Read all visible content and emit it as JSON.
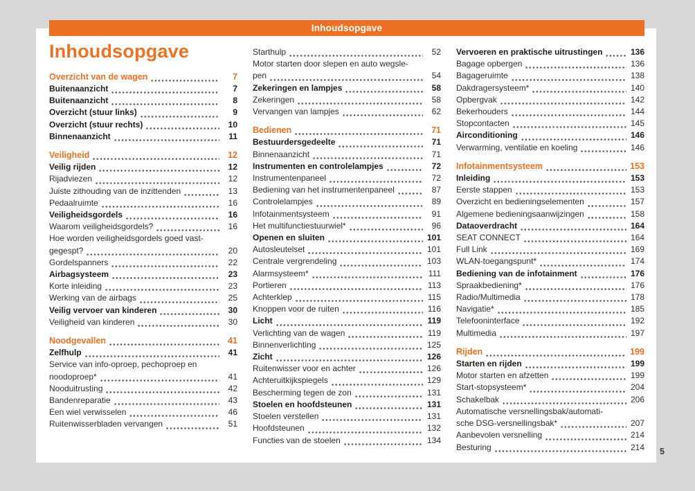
{
  "colors": {
    "accent_orange": "#ee7023",
    "background_gray": "#d8d8d8",
    "page_white": "#ffffff",
    "text": "#2e2d2c"
  },
  "header_bar": {
    "title": "Inhoudsopgave"
  },
  "margin": {
    "page_number": "5"
  },
  "toc": {
    "title": "Inhoudsopgave",
    "columns": [
      {
        "items": [
          {
            "style": "chapter",
            "text": "Overzicht van de wagen",
            "page": "7"
          },
          {
            "style": "section",
            "text": "Buitenaanzicht",
            "page": "7"
          },
          {
            "style": "section",
            "text": "Buitenaanzicht",
            "page": "8"
          },
          {
            "style": "section",
            "text": "Overzicht (stuur links)",
            "page": "9"
          },
          {
            "style": "section",
            "text": "Overzicht (stuur rechts)",
            "page": "10"
          },
          {
            "style": "section",
            "text": "Binnenaanzicht",
            "page": "11"
          },
          {
            "style": "chapter",
            "gap": true,
            "text": "Veiligheid",
            "page": "12"
          },
          {
            "style": "section",
            "text": "Veilig rijden",
            "page": "12"
          },
          {
            "style": "entry",
            "text": "Rijadviezen",
            "page": "12"
          },
          {
            "style": "entry",
            "text": "Juiste zithouding van de inzittenden",
            "page": "13"
          },
          {
            "style": "entry",
            "text": "Pedaalruimte",
            "page": "16"
          },
          {
            "style": "section",
            "text": "Veiligheidsgordels",
            "page": "16"
          },
          {
            "style": "entry",
            "text": "Waarom veiligheidsgordels?",
            "page": "16"
          },
          {
            "style": "entry",
            "text": "Hoe worden veiligheidsgordels goed vast-",
            "text2": "gegespt?",
            "page": "20"
          },
          {
            "style": "entry",
            "text": "Gordelspanners",
            "page": "22"
          },
          {
            "style": "section",
            "text": "Airbagsysteem",
            "page": "23"
          },
          {
            "style": "entry",
            "text": "Korte inleiding",
            "page": "23"
          },
          {
            "style": "entry",
            "text": "Werking van de airbags",
            "page": "25"
          },
          {
            "style": "section",
            "text": "Veilig vervoer van kinderen",
            "page": "30"
          },
          {
            "style": "entry",
            "text": "Veiligheid van kinderen",
            "page": "30"
          },
          {
            "style": "chapter",
            "gap": true,
            "text": "Noodgevallen",
            "page": "41"
          },
          {
            "style": "section",
            "text": "Zelfhulp",
            "page": "41"
          },
          {
            "style": "entry",
            "text": "Service van info-oproep, pechoproep en",
            "text2": "noodoproep*",
            "page": "41"
          },
          {
            "style": "entry",
            "text": "Nooduitrusting",
            "page": "42"
          },
          {
            "style": "entry",
            "text": "Bandenreparatie",
            "page": "43"
          },
          {
            "style": "entry",
            "text": "Een wiel verwisselen",
            "page": "46"
          },
          {
            "style": "entry",
            "text": "Ruitenwisserbladen vervangen",
            "page": "51"
          }
        ]
      },
      {
        "items": [
          {
            "style": "entry",
            "text": "Starthulp",
            "page": "52"
          },
          {
            "style": "entry",
            "text": "Motor starten door slepen en auto wegsle-",
            "text2": "pen",
            "page": "54"
          },
          {
            "style": "section",
            "text": "Zekeringen en lampjes",
            "page": "58"
          },
          {
            "style": "entry",
            "text": "Zekeringen",
            "page": "58"
          },
          {
            "style": "entry",
            "text": "Vervangen van lampjes",
            "page": "62"
          },
          {
            "style": "chapter",
            "gap": true,
            "text": "Bedienen",
            "page": "71"
          },
          {
            "style": "section",
            "text": "Bestuurdersgedeelte",
            "page": "71"
          },
          {
            "style": "entry",
            "text": "Binnenaanzicht",
            "page": "71"
          },
          {
            "style": "section",
            "text": "Instrumenten en controlelampjes",
            "page": "72"
          },
          {
            "style": "entry",
            "text": "Instrumentenpaneel",
            "page": "72"
          },
          {
            "style": "entry",
            "text": "Bediening van het instrumentenpaneel",
            "page": "87"
          },
          {
            "style": "entry",
            "text": "Controlelampjes",
            "page": "89"
          },
          {
            "style": "entry",
            "text": "Infotainmentsysteem",
            "page": "91"
          },
          {
            "style": "entry",
            "text": "Het multifunctiestuurwiel*",
            "page": "96"
          },
          {
            "style": "section",
            "text": "Openen en sluiten",
            "page": "101"
          },
          {
            "style": "entry",
            "text": "Autosleutelset",
            "page": "101"
          },
          {
            "style": "entry",
            "text": "Centrale vergrendeling",
            "page": "103"
          },
          {
            "style": "entry",
            "text": "Alarmsysteem*",
            "page": "111"
          },
          {
            "style": "entry",
            "text": "Portieren",
            "page": "113"
          },
          {
            "style": "entry",
            "text": "Achterklep",
            "page": "115"
          },
          {
            "style": "entry",
            "text": "Knoppen voor de ruiten",
            "page": "116"
          },
          {
            "style": "section",
            "text": "Licht",
            "page": "119"
          },
          {
            "style": "entry",
            "text": "Verlichting van de wagen",
            "page": "119"
          },
          {
            "style": "entry",
            "text": "Binnenverlichting",
            "page": "125"
          },
          {
            "style": "section",
            "text": "Zicht",
            "page": "126"
          },
          {
            "style": "entry",
            "text": "Ruitenwisser voor en achter",
            "page": "126"
          },
          {
            "style": "entry",
            "text": "Achteruitkijkspiegels",
            "page": "129"
          },
          {
            "style": "entry",
            "text": "Bescherming tegen de zon",
            "page": "131"
          },
          {
            "style": "section",
            "text": "Stoelen en hoofdsteunen",
            "page": "131"
          },
          {
            "style": "entry",
            "text": "Stoelen verstellen",
            "page": "131"
          },
          {
            "style": "entry",
            "text": "Hoofdsteunen",
            "page": "132"
          },
          {
            "style": "entry",
            "text": "Functies van de stoelen",
            "page": "134"
          }
        ]
      },
      {
        "items": [
          {
            "style": "section",
            "text": "Vervoeren en praktische uitrustingen",
            "page": "136"
          },
          {
            "style": "entry",
            "text": "Bagage opbergen",
            "page": "136"
          },
          {
            "style": "entry",
            "text": "Bagageruimte",
            "page": "138"
          },
          {
            "style": "entry",
            "text": "Dakdragersysteem*",
            "page": "140"
          },
          {
            "style": "entry",
            "text": "Opbergvak",
            "page": "142"
          },
          {
            "style": "entry",
            "text": "Bekerhouders",
            "page": "144"
          },
          {
            "style": "entry",
            "text": "Stopcontacten",
            "page": "145"
          },
          {
            "style": "section",
            "text": "Airconditioning",
            "page": "146"
          },
          {
            "style": "entry",
            "text": "Verwarming, ventilatie en koeling",
            "page": "146"
          },
          {
            "style": "chapter",
            "gap": true,
            "text": "Infotainmentsysteem",
            "page": "153"
          },
          {
            "style": "section",
            "text": "Inleiding",
            "page": "153"
          },
          {
            "style": "entry",
            "text": "Eerste stappen",
            "page": "153"
          },
          {
            "style": "entry",
            "text": "Overzicht en bedieningselementen",
            "page": "157"
          },
          {
            "style": "entry",
            "text": "Algemene bedieningsaanwijzingen",
            "page": "158"
          },
          {
            "style": "section",
            "text": "Dataoverdracht",
            "page": "164"
          },
          {
            "style": "entry",
            "text": "SEAT CONNECT",
            "page": "164"
          },
          {
            "style": "entry",
            "text": "Full Link",
            "page": "169"
          },
          {
            "style": "entry",
            "text": "WLAN-toegangspunt*",
            "page": "174"
          },
          {
            "style": "section",
            "text": "Bediening van de infotainment",
            "page": "176"
          },
          {
            "style": "entry",
            "text": "Spraakbediening*",
            "page": "176"
          },
          {
            "style": "entry",
            "text": "Radio/Multimedia",
            "page": "178"
          },
          {
            "style": "entry",
            "text": "Navigatie*",
            "page": "185"
          },
          {
            "style": "entry",
            "text": "Telefooninterface",
            "page": "192"
          },
          {
            "style": "entry",
            "text": "Multimedia",
            "page": "197"
          },
          {
            "style": "chapter",
            "gap": true,
            "text": "Rijden",
            "page": "199"
          },
          {
            "style": "section",
            "text": "Starten en rijden",
            "page": "199"
          },
          {
            "style": "entry",
            "text": "Motor starten en afzetten",
            "page": "199"
          },
          {
            "style": "entry",
            "text": "Start-stopsysteem*",
            "page": "204"
          },
          {
            "style": "entry",
            "text": "Schakelbak",
            "page": "206"
          },
          {
            "style": "entry",
            "text": "Automatische versnellingsbak/automati-",
            "text2": "sche DSG-versnellingsbak*",
            "page": "207"
          },
          {
            "style": "entry",
            "text": "Aanbevolen versnelling",
            "page": "214"
          },
          {
            "style": "entry",
            "text": "Besturing",
            "page": "214"
          }
        ]
      }
    ]
  }
}
